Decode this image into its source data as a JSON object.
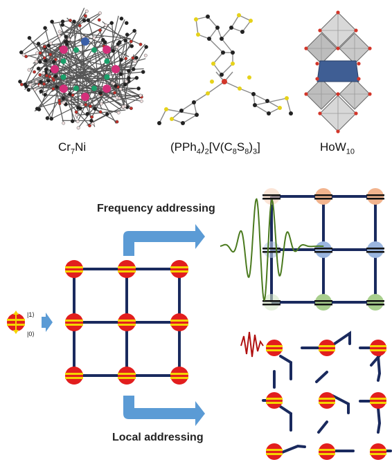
{
  "molecules": [
    {
      "name": "cr7ni",
      "base": "Cr",
      "sub1": "7",
      "mid": "Ni",
      "sub2": "",
      "tail": "",
      "sub3": "",
      "end": ""
    },
    {
      "name": "vanadium",
      "base": "(PPh",
      "sub1": "4",
      "mid": ")",
      "sub2": "2",
      "tail": "[V(C",
      "sub3": "8",
      "end": "S"
    },
    {
      "name": "how10",
      "base": "HoW",
      "sub1": "10",
      "mid": "",
      "sub2": "",
      "tail": "",
      "sub3": "",
      "end": ""
    }
  ],
  "vanadium_extra": {
    "s_sub": "8",
    "close": ")",
    "close_sub": "3",
    "bracket": "]"
  },
  "labels": {
    "frequency": "Frequency addressing",
    "local": "Local addressing",
    "ket1": "|1⟩",
    "ket0": "|0⟩"
  },
  "colors": {
    "grid_line": "#1a2a5e",
    "node_red": "#e21e1e",
    "node_stripe": "#f5d400",
    "arrow_blue": "#5b9bd5",
    "wave_green": "#4a7a1e",
    "peach": "#f8d4bd",
    "orange": "#f2b48e",
    "light_blue": "#b9cbe8",
    "mid_blue": "#9bb6e0",
    "light_green": "#d6e8c8",
    "mid_green": "#a9cf8e",
    "pulse_red": "#b01010"
  }
}
